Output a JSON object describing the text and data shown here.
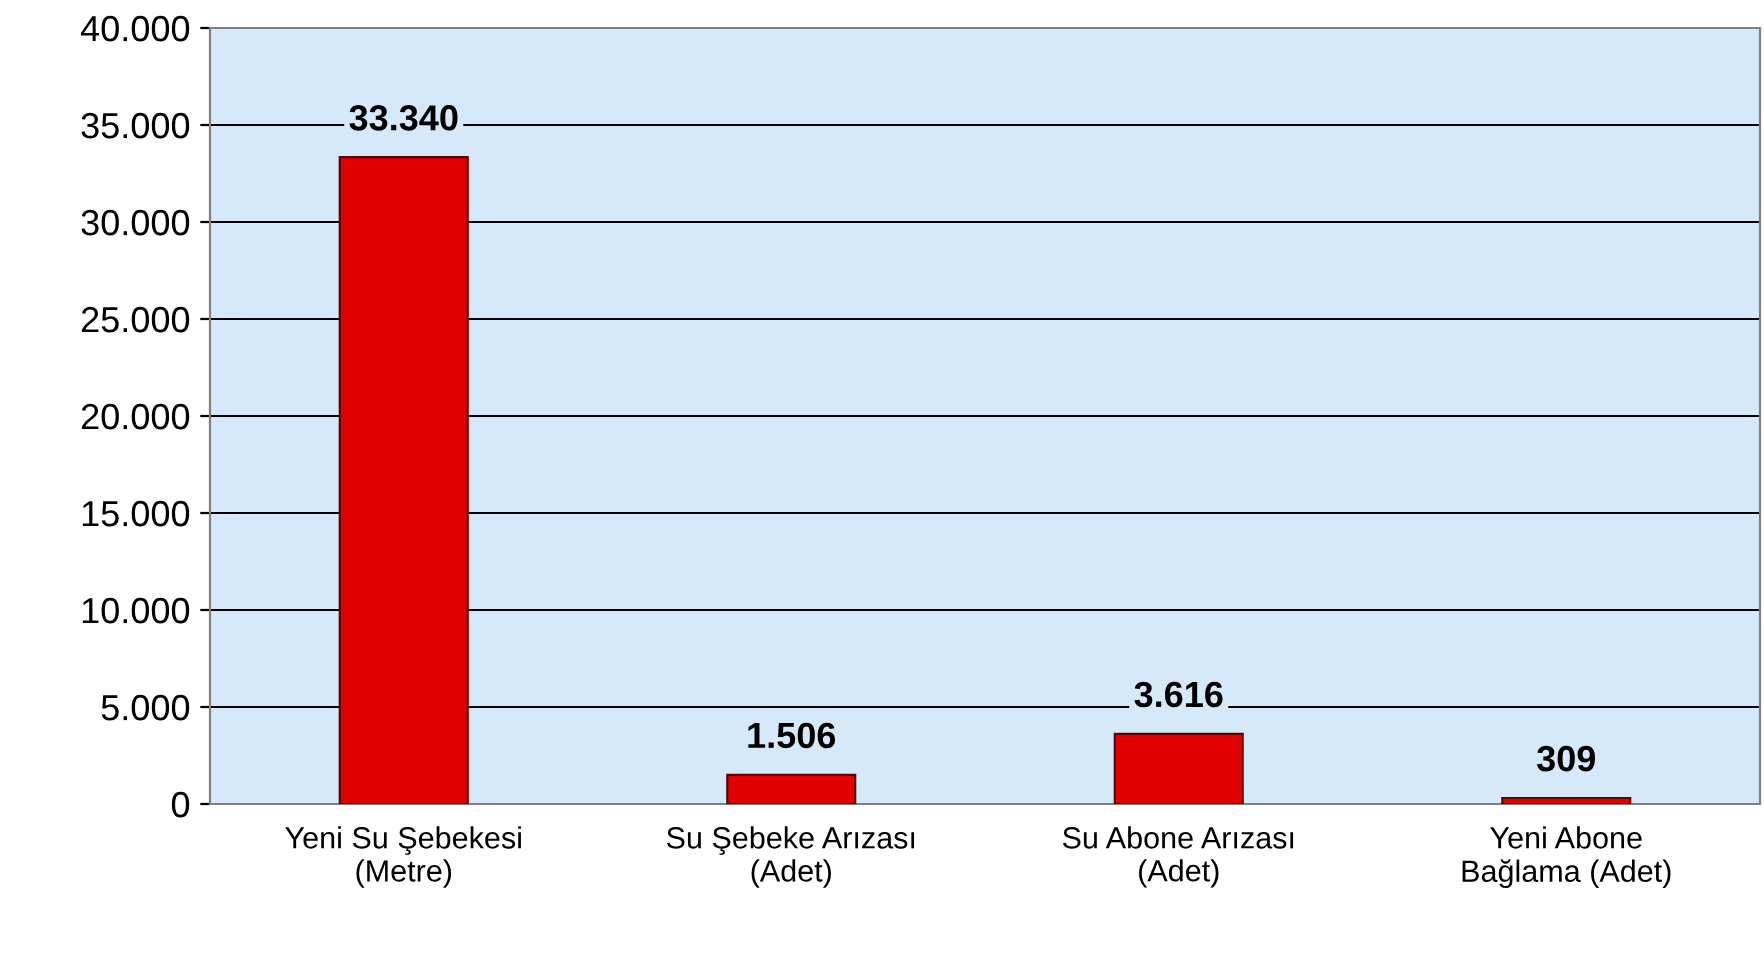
{
  "chart_data": {
    "type": "bar",
    "categories": [
      "Yeni Su Şebekesi\n(Metre)",
      "Su Şebeke Arızası\n(Adet)",
      "Su Abone Arızası\n(Adet)",
      "Yeni Abone\nBağlama (Adet)"
    ],
    "values": [
      33340,
      1506,
      3616,
      309
    ],
    "color": "#e00000",
    "ylim": [
      0,
      40000
    ],
    "yticks": [
      {
        "value": 0,
        "label": "0"
      },
      {
        "value": 5000,
        "label": "5.000"
      },
      {
        "value": 10000,
        "label": "10.000"
      },
      {
        "value": 15000,
        "label": "15.000"
      },
      {
        "value": 20000,
        "label": "20.000"
      },
      {
        "value": 25000,
        "label": "25.000"
      },
      {
        "value": 30000,
        "label": "30.000"
      },
      {
        "value": 35000,
        "label": "35.000"
      },
      {
        "value": 40000,
        "label": "40.000"
      }
    ],
    "grid": "y",
    "value_labels": [
      "33.340",
      "1.506",
      "3.616",
      "309"
    ]
  }
}
